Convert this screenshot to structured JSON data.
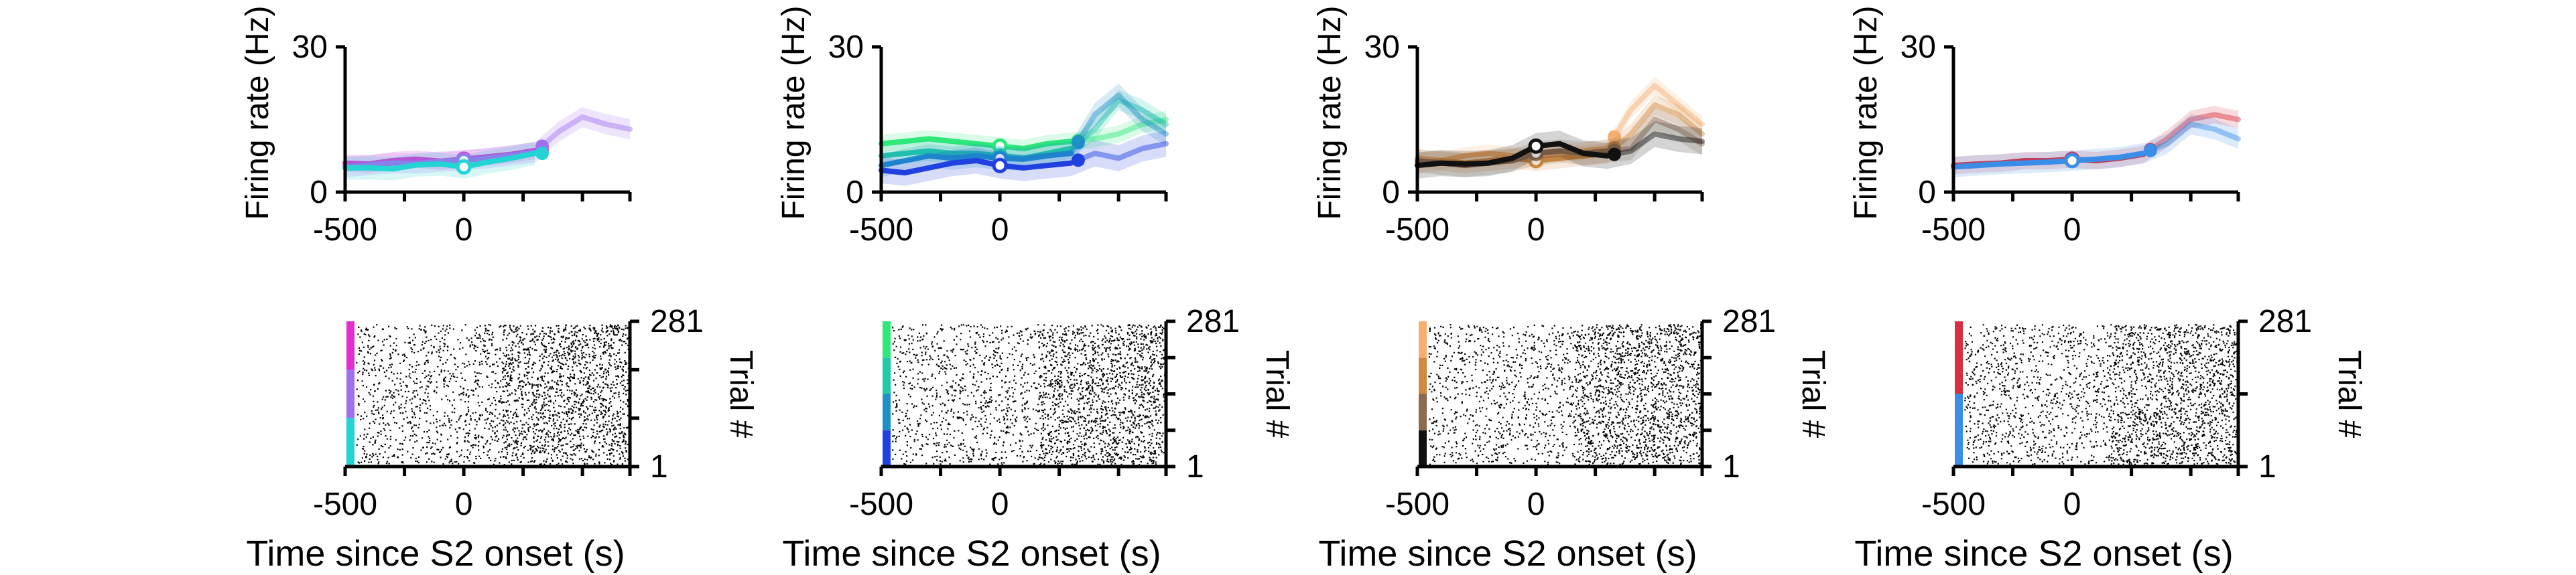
{
  "figure": {
    "tick_labels": {
      "x_left": "-500",
      "x_zero": "0",
      "y_top": "30",
      "y_bottom": "0"
    },
    "rate_ylabel": "Firing rate (Hz)",
    "raster_xlabel": "Time since S2 onset (s)",
    "raster_ylabel": "Trial #",
    "raster_trial_labels": {
      "top": "281",
      "bottom": "1"
    }
  },
  "chart_data": [
    {
      "type": "line",
      "panel": 1,
      "xlabel": "",
      "ylabel": "Firing rate (Hz)",
      "xlim": [
        -500,
        700
      ],
      "ylim": [
        0,
        30
      ],
      "xticks": [
        -500,
        0
      ],
      "yticks": [
        0,
        30
      ],
      "x": [
        -500,
        -400,
        -300,
        -200,
        -100,
        0,
        100,
        200,
        300,
        400,
        500,
        600,
        700
      ],
      "series": [
        {
          "color": "#e02fd0",
          "values": [
            6.0,
            5.8,
            6.5,
            6.8,
            6.4,
            6.8,
            7.3,
            7.8,
            8.6,
            null,
            null,
            null,
            null
          ],
          "open_marker_x": 0,
          "filled_marker_x": 330
        },
        {
          "color": "#a070f0",
          "values": [
            5.2,
            5.6,
            6.0,
            5.9,
            6.3,
            6.6,
            7.0,
            7.6,
            8.2,
            12.5,
            15.5,
            14.0,
            13.0
          ],
          "open_marker_x": 0,
          "filled_marker_x": 330
        },
        {
          "color": "#22d4d4",
          "values": [
            5.0,
            5.0,
            4.8,
            5.6,
            5.8,
            5.2,
            6.2,
            7.0,
            8.0,
            null,
            null,
            null,
            null
          ],
          "open_marker_x": 0,
          "filled_marker_x": 330
        }
      ]
    },
    {
      "type": "line",
      "panel": 2,
      "xlabel": "",
      "ylabel": "Firing rate (Hz)",
      "xlim": [
        -500,
        700
      ],
      "ylim": [
        0,
        30
      ],
      "xticks": [
        -500,
        0
      ],
      "yticks": [
        0,
        30
      ],
      "x": [
        -500,
        -400,
        -300,
        -200,
        -100,
        0,
        100,
        200,
        300,
        400,
        500,
        600,
        700
      ],
      "series": [
        {
          "color": "#2ee87a",
          "values": [
            10.0,
            10.5,
            11.0,
            10.5,
            10.0,
            9.5,
            9.0,
            10.0,
            10.5,
            11.0,
            12.0,
            14.0,
            15.0
          ],
          "open_marker_x": 0,
          "filled_marker_x": 330
        },
        {
          "color": "#22c8a8",
          "values": [
            7.5,
            8.0,
            8.5,
            8.0,
            8.0,
            7.5,
            7.0,
            8.0,
            9.0,
            13.0,
            19.0,
            17.0,
            14.0
          ],
          "open_marker_x": 0,
          "filled_marker_x": 330
        },
        {
          "color": "#1e90c8",
          "values": [
            5.5,
            6.5,
            7.5,
            7.0,
            7.5,
            7.0,
            6.8,
            7.5,
            8.0,
            16.0,
            20.0,
            15.0,
            12.0
          ],
          "open_marker_x": 0,
          "filled_marker_x": 330
        },
        {
          "color": "#2040e0",
          "values": [
            4.5,
            4.0,
            5.0,
            6.0,
            6.5,
            5.5,
            5.0,
            5.5,
            6.0,
            8.0,
            7.0,
            9.0,
            10.0
          ],
          "open_marker_x": 0,
          "filled_marker_x": 330
        }
      ]
    },
    {
      "type": "line",
      "panel": 3,
      "xlabel": "",
      "ylabel": "Firing rate (Hz)",
      "xlim": [
        -500,
        700
      ],
      "ylim": [
        0,
        30
      ],
      "xticks": [
        -500,
        0
      ],
      "yticks": [
        0,
        30
      ],
      "x": [
        -500,
        -400,
        -300,
        -200,
        -100,
        0,
        100,
        200,
        300,
        400,
        500,
        600,
        700
      ],
      "series": [
        {
          "color": "#f5b070",
          "values": [
            7.0,
            6.5,
            7.5,
            8.0,
            7.5,
            7.0,
            8.0,
            8.5,
            9.0,
            17.0,
            22.0,
            18.0,
            14.0
          ],
          "open_marker_x": 0,
          "filled_marker_x": 330
        },
        {
          "color": "#d08a40",
          "values": [
            6.0,
            6.5,
            6.0,
            6.5,
            7.0,
            6.5,
            7.0,
            7.5,
            8.0,
            12.0,
            18.0,
            16.0,
            12.0
          ],
          "open_marker_x": 0,
          "filled_marker_x": 330
        },
        {
          "color": "#8a6a50",
          "values": [
            6.5,
            6.0,
            5.5,
            6.0,
            6.5,
            8.0,
            8.5,
            8.0,
            8.5,
            9.0,
            15.0,
            13.0,
            10.0
          ],
          "open_marker_x": 0,
          "filled_marker_x": 330
        },
        {
          "color": "#111111",
          "values": [
            5.5,
            6.0,
            5.8,
            6.0,
            7.0,
            9.5,
            10.0,
            8.0,
            7.5,
            8.5,
            12.0,
            11.0,
            10.5
          ],
          "open_marker_x": 0,
          "filled_marker_x": 330
        }
      ]
    },
    {
      "type": "line",
      "panel": 4,
      "xlabel": "",
      "ylabel": "Firing rate (Hz)",
      "xlim": [
        -500,
        700
      ],
      "ylim": [
        0,
        30
      ],
      "xticks": [
        -500,
        0
      ],
      "yticks": [
        0,
        30
      ],
      "x": [
        -500,
        -400,
        -300,
        -200,
        -100,
        0,
        100,
        200,
        300,
        400,
        500,
        600,
        700
      ],
      "series": [
        {
          "color": "#d83040",
          "values": [
            5.5,
            5.8,
            6.0,
            6.5,
            6.5,
            6.8,
            6.5,
            7.0,
            7.8,
            11.0,
            15.0,
            16.0,
            15.0
          ],
          "open_marker_x": 0,
          "filled_marker_x": 330
        },
        {
          "color": "#3a8ee8",
          "values": [
            5.2,
            5.5,
            5.8,
            6.0,
            6.2,
            6.5,
            6.8,
            7.2,
            8.0,
            10.0,
            14.0,
            13.0,
            11.0
          ],
          "open_marker_x": 0,
          "filled_marker_x": 330
        }
      ]
    },
    {
      "type": "scatter",
      "panel": 5,
      "kind": "raster",
      "xlabel": "Time since S2 onset (s)",
      "ylabel": "Trial #",
      "xlim": [
        -500,
        700
      ],
      "ylim": [
        1,
        281
      ],
      "xticks": [
        -500,
        0
      ],
      "condition_colors": [
        "#22d4d4",
        "#a070f0",
        "#e02fd0"
      ]
    },
    {
      "type": "scatter",
      "panel": 6,
      "kind": "raster",
      "xlabel": "Time since S2 onset (s)",
      "ylabel": "Trial #",
      "xlim": [
        -500,
        700
      ],
      "ylim": [
        1,
        281
      ],
      "xticks": [
        -500,
        0
      ],
      "condition_colors": [
        "#2040e0",
        "#1e90c8",
        "#22c8a8",
        "#2ee87a"
      ]
    },
    {
      "type": "scatter",
      "panel": 7,
      "kind": "raster",
      "xlabel": "Time since S2 onset (s)",
      "ylabel": "Trial #",
      "xlim": [
        -500,
        700
      ],
      "ylim": [
        1,
        281
      ],
      "xticks": [
        -500,
        0
      ],
      "condition_colors": [
        "#111111",
        "#8a6a50",
        "#d08a40",
        "#f5b070"
      ]
    },
    {
      "type": "scatter",
      "panel": 8,
      "kind": "raster",
      "xlabel": "Time since S2 onset (s)",
      "ylabel": "Trial #",
      "xlim": [
        -500,
        700
      ],
      "ylim": [
        1,
        281
      ],
      "xticks": [
        -500,
        0
      ],
      "condition_colors": [
        "#3a8ee8",
        "#d83040"
      ]
    }
  ]
}
